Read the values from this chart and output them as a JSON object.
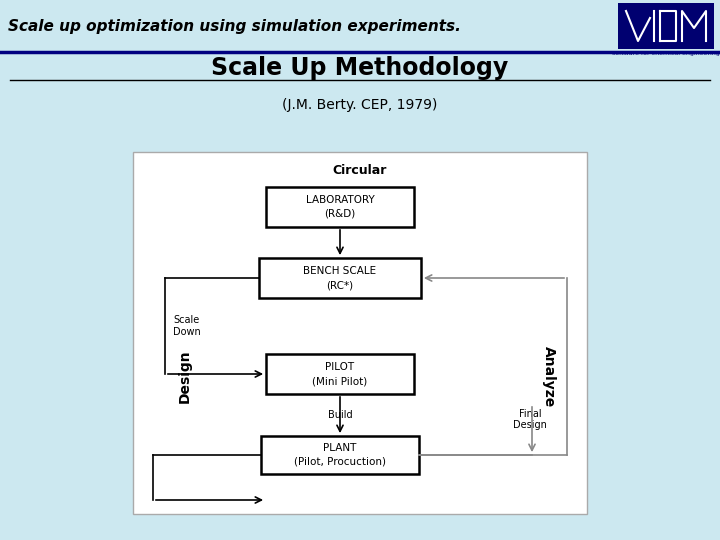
{
  "bg_color": "#cce8f0",
  "title": "Scale Up Methodology",
  "subtitle": "(J.M. Berty. CEP, 1979)",
  "header_text": "Scale up optimization using simulation experiments.",
  "box1_label": "LABORATORY\n(R&D)",
  "box2_label": "BENCH SCALE\n(RC*)",
  "box3_label": "PILOT\n(Mini Pilot)",
  "box4_label": "PLANT\n(Pilot, Procuction)",
  "circular_label": "Circular",
  "design_label": "Design",
  "analyze_label": "Analyze",
  "scale_down_label": "Scale\nDown",
  "build_label": "Build",
  "final_design_label": "Final\nDesign",
  "header_line_color": "#000080",
  "title_line_color": "#000000",
  "box_edge_color": "#000000",
  "arrow_black": "#000000",
  "arrow_gray": "#888888",
  "diag_bg": "#ffffff"
}
